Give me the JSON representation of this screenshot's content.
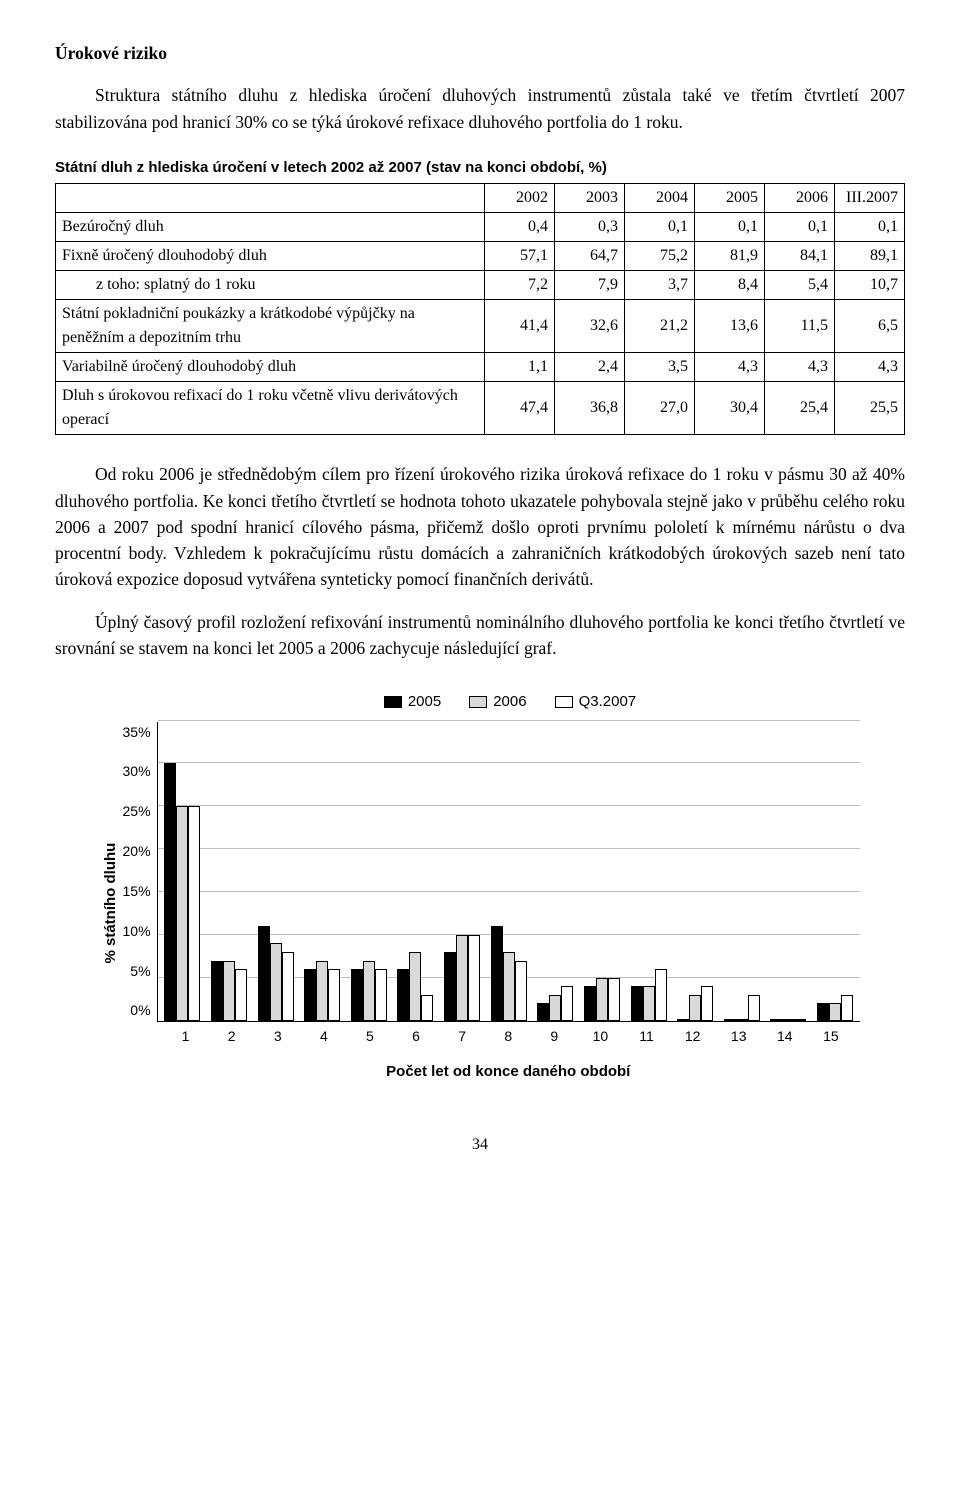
{
  "heading": "Úrokové riziko",
  "para1": "Struktura státního dluhu z hlediska úročení dluhových instrumentů zůstala také ve třetím čtvrtletí 2007 stabilizována pod hranicí 30% co se týká úrokové refixace dluhového portfolia do 1 roku.",
  "table_title": "Státní dluh z hlediska úročení v letech 2002 až 2007 (stav na konci období, %)",
  "table": {
    "headers": [
      "2002",
      "2003",
      "2004",
      "2005",
      "2006",
      "III.2007"
    ],
    "rows": [
      {
        "label": "Bezúročný dluh",
        "sub": false,
        "vals": [
          "0,4",
          "0,3",
          "0,1",
          "0,1",
          "0,1",
          "0,1"
        ]
      },
      {
        "label": "Fixně úročený dlouhodobý dluh",
        "sub": false,
        "vals": [
          "57,1",
          "64,7",
          "75,2",
          "81,9",
          "84,1",
          "89,1"
        ]
      },
      {
        "label": "z toho: splatný do 1 roku",
        "sub": true,
        "vals": [
          "7,2",
          "7,9",
          "3,7",
          "8,4",
          "5,4",
          "10,7"
        ]
      },
      {
        "label": "Státní pokladniční poukázky a krátkodobé výpůjčky na peněžním a depozitním trhu",
        "sub": false,
        "vals": [
          "41,4",
          "32,6",
          "21,2",
          "13,6",
          "11,5",
          "6,5"
        ]
      },
      {
        "label": "Variabilně úročený dlouhodobý dluh",
        "sub": false,
        "vals": [
          "1,1",
          "2,4",
          "3,5",
          "4,3",
          "4,3",
          "4,3"
        ]
      },
      {
        "label": "Dluh s úrokovou refixací do 1 roku včetně vlivu derivátových operací",
        "sub": false,
        "vals": [
          "47,4",
          "36,8",
          "27,0",
          "30,4",
          "25,4",
          "25,5"
        ]
      }
    ]
  },
  "para2": "Od roku 2006 je střednědobým cílem pro řízení úrokového rizika úroková refixace do 1 roku v pásmu 30 až 40% dluhového portfolia. Ke konci třetího čtvrtletí se hodnota tohoto ukazatele pohybovala stejně jako v průběhu celého roku 2006 a 2007 pod spodní hranicí cílového pásma, přičemž došlo oproti prvnímu pololetí k mírnému nárůstu o dva procentní body. Vzhledem k pokračujícímu růstu domácích a zahraničních krátkodobých úrokových sazeb není tato úroková expozice doposud vytvářena synteticky pomocí finančních derivátů.",
  "para3": "Úplný časový profil rozložení refixování instrumentů nominálního dluhového portfolia ke konci třetího čtvrtletí ve srovnání se stavem na konci let 2005 a 2006 zachycuje následující graf.",
  "chart": {
    "legend": [
      "2005",
      "2006",
      "Q3.2007"
    ],
    "ylabel": "% státního dluhu",
    "xlabel": "Počet let od konce daného období",
    "ymax": 35,
    "yticks": [
      "35%",
      "30%",
      "25%",
      "20%",
      "15%",
      "10%",
      "5%",
      "0%"
    ],
    "categories": [
      "1",
      "2",
      "3",
      "4",
      "5",
      "6",
      "7",
      "8",
      "9",
      "10",
      "11",
      "12",
      "13",
      "14",
      "15"
    ],
    "series_colors": [
      "#000000",
      "#d9d9d9",
      "#ffffff"
    ],
    "grid_color": "#bbbbbb",
    "series": {
      "2005": [
        30,
        7,
        11,
        6,
        6,
        6,
        8,
        11,
        2,
        4,
        4,
        0.2,
        0.2,
        0.2,
        2
      ],
      "2006": [
        25,
        7,
        9,
        7,
        7,
        8,
        10,
        8,
        3,
        5,
        4,
        3,
        0.2,
        0.2,
        2
      ],
      "Q3.2007": [
        25,
        6,
        8,
        6,
        6,
        3,
        10,
        7,
        4,
        5,
        6,
        4,
        3,
        0.2,
        3
      ]
    }
  },
  "page_number": "34"
}
